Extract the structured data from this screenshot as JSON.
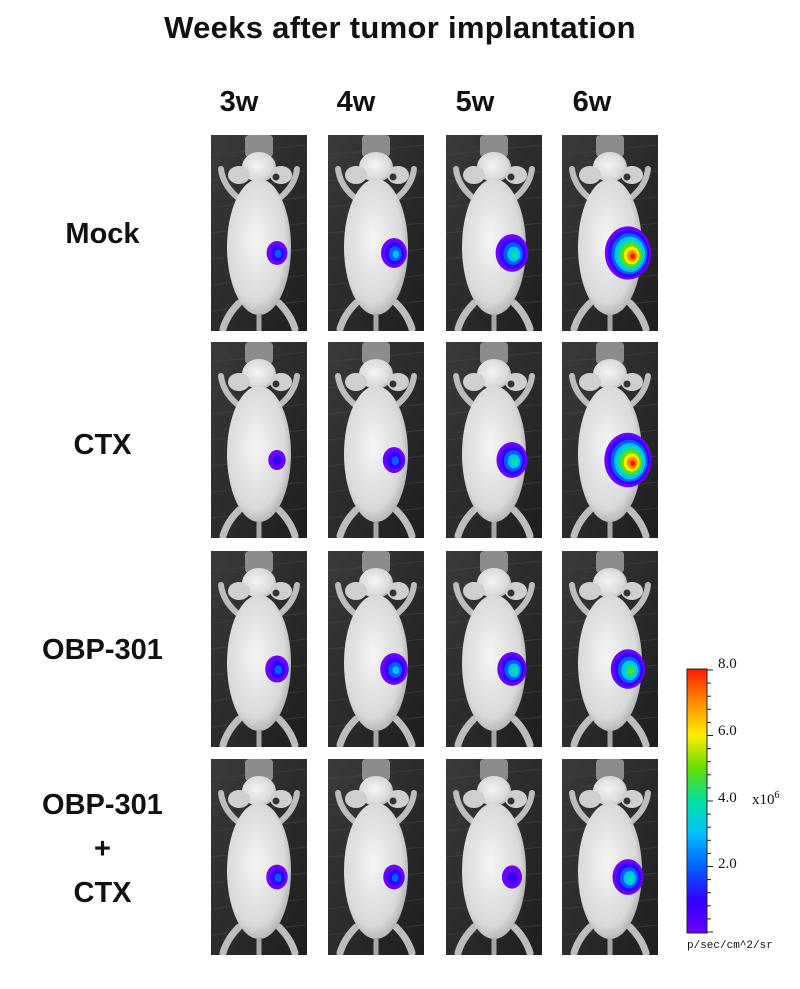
{
  "title": "Weeks after tumor implantation",
  "weeks": [
    "3w",
    "4w",
    "5w",
    "6w"
  ],
  "groups": [
    {
      "name": "Mock",
      "lines": [
        "Mock"
      ],
      "signals": [
        0.2,
        0.35,
        0.55,
        0.95
      ]
    },
    {
      "name": "CTX",
      "lines": [
        "CTX"
      ],
      "signals": [
        0.1,
        0.25,
        0.5,
        0.98
      ]
    },
    {
      "name": "OBP-301",
      "lines": [
        "OBP-301"
      ],
      "signals": [
        0.28,
        0.4,
        0.45,
        0.6
      ]
    },
    {
      "name": "OBP-301 + CTX",
      "lines": [
        "OBP-301",
        "+",
        "CTX"
      ],
      "signals": [
        0.22,
        0.22,
        0.18,
        0.5
      ]
    }
  ],
  "colorbar": {
    "ticks": [
      "8.0",
      "6.0",
      "4.0",
      "2.0"
    ],
    "multiplier": "x10",
    "exponent": "6",
    "unit": "p/sec/cm^2/sr",
    "colors": [
      "#ff1a00",
      "#ff8c00",
      "#ffee00",
      "#66dd00",
      "#00e0a0",
      "#00c0ff",
      "#0060ff",
      "#3300ff",
      "#6a00ff"
    ]
  }
}
